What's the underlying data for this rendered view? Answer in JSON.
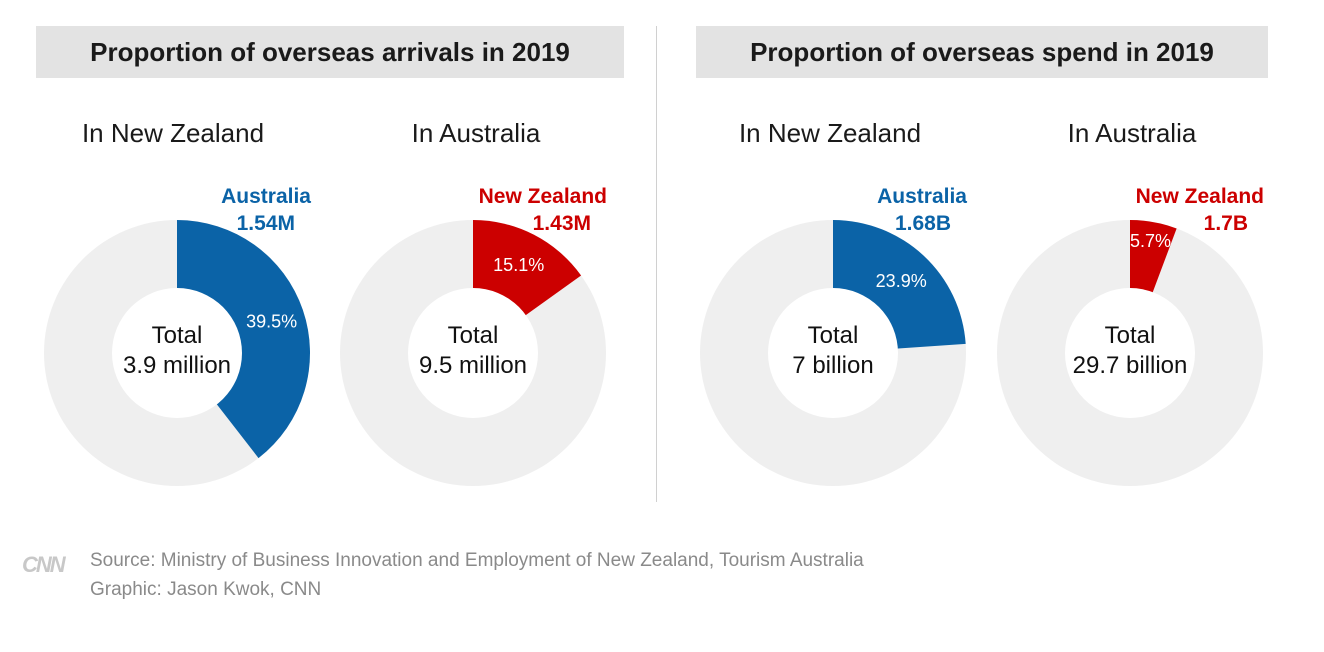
{
  "titles": {
    "left": "Proportion of overseas arrivals in 2019",
    "right": "Proportion of overseas spend in 2019"
  },
  "colors": {
    "blue": "#0b63a7",
    "red": "#cc0000",
    "rest": "#efefef",
    "hole": "#ffffff"
  },
  "chart_data": [
    {
      "type": "pie",
      "title": "In New Zealand",
      "category": "Australia",
      "category_value": "1.54M",
      "share": 39.5,
      "share_label": "39.5%",
      "total_line1": "Total",
      "total_line2": "3.9 million",
      "color": "blue"
    },
    {
      "type": "pie",
      "title": "In Australia",
      "category": "New Zealand",
      "category_value": "1.43M",
      "share": 15.1,
      "share_label": "15.1%",
      "total_line1": "Total",
      "total_line2": "9.5 million",
      "color": "red"
    },
    {
      "type": "pie",
      "title": "In New Zealand",
      "category": "Australia",
      "category_value": "1.68B",
      "share": 23.9,
      "share_label": "23.9%",
      "total_line1": "Total",
      "total_line2": "7 billion",
      "color": "blue"
    },
    {
      "type": "pie",
      "title": "In Australia",
      "category": "New Zealand",
      "category_value": "1.7B",
      "share": 5.7,
      "share_label": "5.7%",
      "total_line1": "Total",
      "total_line2": "29.7 billion",
      "color": "red"
    }
  ],
  "footer": {
    "logo": "CNN",
    "source": "Source: Ministry of Business Innovation and Employment of New Zealand, Tourism Australia",
    "credit": "Graphic: Jason Kwok, CNN"
  }
}
